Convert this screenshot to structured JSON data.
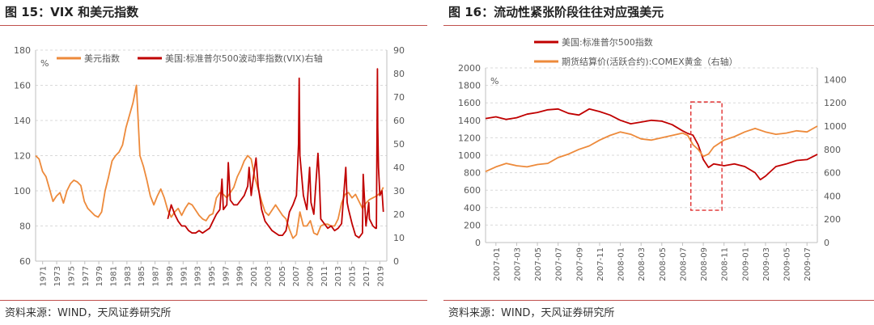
{
  "colors": {
    "usd": "#ED8A3B",
    "vix": "#C00000",
    "spx": "#C00000",
    "gold": "#ED8A3B",
    "rule": "#C0504D",
    "box": "#E03030"
  },
  "source_label": "资料来源：WIND，天风证券研究所",
  "chart_data": [
    {
      "type": "line",
      "title": "图 15：VIX 和美元指数",
      "left_unit": "%",
      "ylim_left": [
        60,
        180
      ],
      "yticks_left": [
        60,
        80,
        100,
        120,
        140,
        160,
        180
      ],
      "ylim_right": [
        0,
        90
      ],
      "yticks_right": [
        0,
        10,
        20,
        30,
        40,
        50,
        60,
        70,
        80,
        90
      ],
      "x_range": [
        1971,
        2021.5
      ],
      "x_ticks": [
        "1971",
        "1973",
        "1975",
        "1977",
        "1979",
        "1981",
        "1983",
        "1985",
        "1987",
        "1989",
        "1991",
        "1993",
        "1995",
        "1997",
        "1999",
        "2001",
        "2003",
        "2005",
        "2007",
        "2009",
        "2011",
        "2013",
        "2015",
        "2017",
        "2019"
      ],
      "legend": "top-left",
      "grid": true,
      "series": [
        {
          "name": "美元指数",
          "axis": "left",
          "color_key": "usd",
          "x": [
            1971,
            1971.5,
            1972,
            1972.5,
            1973,
            1973.5,
            1974,
            1974.5,
            1975,
            1975.5,
            1976,
            1976.5,
            1977,
            1977.5,
            1978,
            1978.5,
            1979,
            1979.5,
            1980,
            1980.5,
            1981,
            1981.5,
            1982,
            1982.5,
            1983,
            1983.5,
            1984,
            1984.5,
            1985,
            1985.5,
            1986,
            1986.5,
            1987,
            1987.5,
            1988,
            1988.5,
            1989,
            1989.5,
            1990,
            1990.5,
            1991,
            1991.5,
            1992,
            1992.5,
            1993,
            1993.5,
            1994,
            1994.5,
            1995,
            1995.5,
            1996,
            1996.5,
            1997,
            1997.5,
            1998,
            1998.5,
            1999,
            1999.5,
            2000,
            2000.5,
            2001,
            2001.5,
            2002,
            2002.5,
            2003,
            2003.5,
            2004,
            2004.5,
            2005,
            2005.5,
            2006,
            2006.5,
            2007,
            2007.5,
            2008,
            2008.5,
            2009,
            2009.5,
            2010,
            2010.5,
            2011,
            2011.5,
            2012,
            2012.5,
            2013,
            2013.5,
            2014,
            2014.5,
            2015,
            2015.5,
            2016,
            2016.5,
            2017,
            2017.5,
            2018,
            2018.5,
            2019,
            2019.5,
            2020,
            2020.3,
            2020.6,
            2021
          ],
          "values": [
            120,
            118,
            111,
            108,
            101,
            94,
            97,
            99,
            93,
            100,
            104,
            106,
            105,
            103,
            94,
            90,
            88,
            86,
            85,
            88,
            100,
            108,
            117,
            120,
            122,
            126,
            136,
            143,
            150,
            160,
            120,
            114,
            106,
            97,
            92,
            97,
            101,
            96,
            89,
            85,
            88,
            90,
            86,
            90,
            93,
            92,
            89,
            86,
            84,
            83,
            86,
            87,
            96,
            99,
            98,
            96,
            99,
            102,
            108,
            112,
            117,
            120,
            118,
            108,
            101,
            94,
            88,
            86,
            89,
            92,
            89,
            86,
            84,
            78,
            73,
            75,
            88,
            80,
            80,
            83,
            76,
            75,
            80,
            81,
            81,
            80,
            80,
            84,
            93,
            98,
            99,
            96,
            98,
            94,
            90,
            93,
            95,
            96,
            97,
            98,
            99,
            102
          ]
        },
        {
          "name": "美国:标准普尔500波动率指数(VIX)右轴",
          "axis": "right",
          "color_key": "vix",
          "x": [
            1990,
            1990.5,
            1991,
            1991.5,
            1992,
            1992.5,
            1993,
            1993.5,
            1994,
            1994.5,
            1995,
            1995.5,
            1996,
            1996.5,
            1997,
            1997.5,
            1997.8,
            1998,
            1998.5,
            1998.7,
            1999,
            1999.5,
            2000,
            2000.5,
            2001,
            2001.5,
            2001.7,
            2002,
            2002.5,
            2002.7,
            2003,
            2003.5,
            2004,
            2004.5,
            2005,
            2005.5,
            2006,
            2006.5,
            2007,
            2007.5,
            2008,
            2008.5,
            2008.8,
            2008.9,
            2009,
            2009.5,
            2010,
            2010.4,
            2010.6,
            2011,
            2011.6,
            2011.8,
            2012,
            2012.5,
            2013,
            2013.5,
            2014,
            2014.5,
            2015,
            2015.6,
            2015.8,
            2016,
            2016.5,
            2017,
            2017.5,
            2018,
            2018.1,
            2018.5,
            2018.9,
            2019,
            2019.5,
            2019.9,
            2020,
            2020.15,
            2020.2,
            2020.3,
            2020.5,
            2020.8,
            2021
          ],
          "values": [
            18,
            24,
            20,
            17,
            15,
            15,
            13,
            12,
            12,
            13,
            12,
            13,
            14,
            17,
            20,
            22,
            35,
            22,
            24,
            42,
            26,
            24,
            24,
            26,
            28,
            32,
            40,
            28,
            40,
            44,
            32,
            22,
            17,
            15,
            13,
            12,
            11,
            11,
            13,
            21,
            24,
            28,
            50,
            78,
            45,
            28,
            22,
            40,
            25,
            20,
            46,
            35,
            18,
            16,
            14,
            15,
            13,
            14,
            16,
            40,
            25,
            22,
            16,
            11,
            10,
            12,
            37,
            15,
            25,
            18,
            15,
            14,
            14,
            82,
            57,
            40,
            28,
            30,
            21
          ]
        }
      ]
    },
    {
      "type": "line",
      "title": "图 16：流动性紧张阶段往往对应强美元",
      "left_unit": "%",
      "ylim_left": [
        0,
        2000
      ],
      "yticks_left": [
        0,
        200,
        400,
        600,
        800,
        1000,
        1200,
        1400,
        1600,
        1800,
        2000
      ],
      "ylim_right": [
        0,
        1500
      ],
      "yticks_right": [
        0,
        200,
        400,
        600,
        800,
        1000,
        1200,
        1400
      ],
      "x_range": [
        0,
        32
      ],
      "x_ticks": [
        "2007-01",
        "2007-03",
        "2007-05",
        "2007-07",
        "2007-09",
        "2007-11",
        "2008-01",
        "2008-03",
        "2008-05",
        "2008-07",
        "2008-09",
        "2008-11",
        "2009-01",
        "2009-03",
        "2009-05",
        "2009-07"
      ],
      "legend": "top-left",
      "grid": true,
      "annotation": {
        "type": "dashed-box",
        "x_from": 19.8,
        "x_to": 22.8,
        "y_from": 370,
        "y_to": 1610
      },
      "series": [
        {
          "name": "美国:标准普尔500指数",
          "axis": "left",
          "color_key": "spx",
          "x": [
            0,
            1,
            2,
            3,
            4,
            5,
            6,
            7,
            8,
            9,
            10,
            11,
            12,
            13,
            14,
            15,
            16,
            17,
            18,
            19,
            19.5,
            20,
            20.5,
            21,
            21.5,
            22,
            23,
            24,
            25,
            26,
            26.5,
            27,
            28,
            29,
            30,
            31,
            32
          ],
          "values": [
            1420,
            1440,
            1410,
            1430,
            1470,
            1490,
            1520,
            1530,
            1480,
            1460,
            1530,
            1500,
            1460,
            1400,
            1360,
            1380,
            1400,
            1390,
            1350,
            1280,
            1250,
            1230,
            1120,
            950,
            860,
            900,
            880,
            900,
            870,
            800,
            720,
            760,
            870,
            900,
            940,
            950,
            1010
          ]
        },
        {
          "name": "期货结算价(活跃合约):COMEX黄金（右轴）",
          "axis": "right",
          "color_key": "gold",
          "x": [
            0,
            1,
            2,
            3,
            4,
            5,
            6,
            7,
            8,
            9,
            10,
            11,
            12,
            13,
            14,
            15,
            16,
            17,
            18,
            19,
            19.5,
            20,
            20.5,
            21,
            21.5,
            22,
            23,
            24,
            25,
            26,
            27,
            28,
            29,
            30,
            31,
            32
          ],
          "values": [
            610,
            650,
            680,
            660,
            650,
            670,
            680,
            730,
            760,
            800,
            830,
            880,
            920,
            950,
            930,
            890,
            880,
            900,
            920,
            940,
            920,
            840,
            800,
            740,
            760,
            820,
            880,
            910,
            950,
            980,
            950,
            930,
            940,
            960,
            950,
            1000
          ]
        }
      ]
    }
  ]
}
